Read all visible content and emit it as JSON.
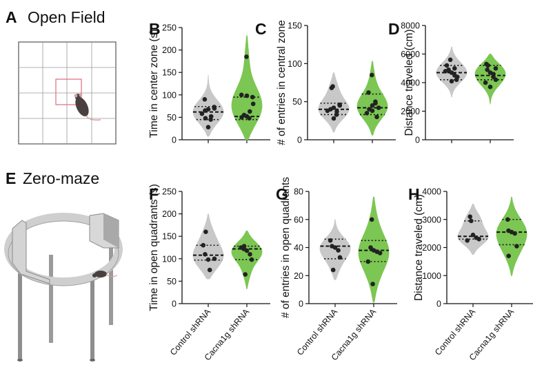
{
  "panels_text": {
    "A": {
      "letter": "A",
      "title": "Open Field"
    },
    "E": {
      "letter": "E",
      "title": "Zero-maze"
    }
  },
  "colors": {
    "control": "#c8c8c8",
    "cacna1g": "#7cc653",
    "point": "#222222",
    "arena_center": "#e06a7a"
  },
  "icons": {
    "open_field": "open-field-arena-with-mouse",
    "zero_maze": "elevated-zero-maze-with-mouse"
  },
  "chart_data": [
    {
      "id": "B",
      "type": "violin",
      "letter": "B",
      "ylabel": "Time in center zone (s)",
      "ylim": [
        0,
        250
      ],
      "yticks": [
        "0",
        "50",
        "100",
        "150",
        "200",
        "250"
      ],
      "categories": [],
      "series": [
        {
          "median": 62,
          "q1": 45,
          "q3": 74,
          "min": 8,
          "max": 145,
          "points": [
            58,
            65,
            68,
            52,
            73,
            90,
            48,
            28,
            45,
            70
          ]
        },
        {
          "median": 52,
          "q1": 45,
          "q3": 95,
          "min": 0,
          "max": 232,
          "points": [
            50,
            55,
            52,
            63,
            95,
            100,
            185,
            98,
            48,
            80
          ]
        }
      ]
    },
    {
      "id": "C",
      "type": "violin",
      "letter": "C",
      "ylabel": "# of entries in central zone",
      "ylim": [
        0,
        150
      ],
      "yticks": [
        "0",
        "50",
        "100",
        "150"
      ],
      "categories": [],
      "series": [
        {
          "median": 40,
          "q1": 33,
          "q3": 48,
          "min": 10,
          "max": 88,
          "points": [
            38,
            40,
            42,
            33,
            46,
            68,
            70,
            28,
            37,
            45
          ]
        },
        {
          "median": 42,
          "q1": 33,
          "q3": 60,
          "min": 6,
          "max": 103,
          "points": [
            35,
            40,
            45,
            50,
            30,
            62,
            85,
            38,
            48,
            42
          ]
        }
      ]
    },
    {
      "id": "D",
      "type": "violin",
      "letter": "D",
      "ylabel": "Distance traveled (cm)",
      "ylim": [
        0,
        8000
      ],
      "yticks": [
        "0",
        "2000",
        "4000",
        "6000",
        "8000"
      ],
      "categories": [],
      "series": [
        {
          "median": 4700,
          "q1": 4200,
          "q3": 5200,
          "min": 3000,
          "max": 6500,
          "points": [
            5200,
            4900,
            4700,
            4500,
            4200,
            4800,
            5600,
            4100,
            5000,
            4400
          ]
        },
        {
          "median": 4500,
          "q1": 4200,
          "q3": 5200,
          "min": 2500,
          "max": 6000,
          "points": [
            5300,
            5200,
            4700,
            4600,
            4200,
            4000,
            4900,
            3700,
            4400,
            5000
          ]
        }
      ]
    },
    {
      "id": "F",
      "type": "violin",
      "letter": "F",
      "ylabel": "Time in open quadrants (s)",
      "ylim": [
        0,
        250
      ],
      "yticks": [
        "0",
        "50",
        "100",
        "150",
        "200",
        "250"
      ],
      "categories": [
        "Control shRNA",
        "Cacna1g shRNA"
      ],
      "series": [
        {
          "median": 108,
          "q1": 97,
          "q3": 130,
          "min": 55,
          "max": 200,
          "points": [
            160,
            110,
            98,
            75,
            100,
            130
          ]
        },
        {
          "median": 122,
          "q1": 98,
          "q3": 128,
          "min": 33,
          "max": 162,
          "points": [
            125,
            122,
            118,
            110,
            98,
            65,
            128
          ]
        }
      ]
    },
    {
      "id": "G",
      "type": "violin",
      "letter": "G",
      "ylabel": "# of entries in open quadrants",
      "ylim": [
        0,
        80
      ],
      "yticks": [
        "0",
        "20",
        "40",
        "60",
        "80"
      ],
      "categories": [
        "Control shRNA",
        "Cacna1g shRNA"
      ],
      "series": [
        {
          "median": 41,
          "q1": 32,
          "q3": 46,
          "min": 17,
          "max": 60,
          "points": [
            45,
            41,
            40,
            38,
            33,
            24
          ]
        },
        {
          "median": 38,
          "q1": 30,
          "q3": 45,
          "min": 1,
          "max": 76,
          "points": [
            60,
            40,
            38,
            37,
            36,
            30,
            14
          ]
        }
      ]
    },
    {
      "id": "H",
      "type": "violin",
      "letter": "H",
      "ylabel": "Distance traveled (cm)",
      "ylim": [
        0,
        4000
      ],
      "yticks": [
        "0",
        "1000",
        "2000",
        "3000",
        "4000"
      ],
      "categories": [
        "Control shRNA",
        "Cacna1g shRNA"
      ],
      "series": [
        {
          "median": 2400,
          "q1": 2300,
          "q3": 2950,
          "min": 1750,
          "max": 3550,
          "points": [
            3100,
            2950,
            2450,
            2350,
            2300,
            2250
          ]
        },
        {
          "median": 2550,
          "q1": 2100,
          "q3": 3000,
          "min": 1000,
          "max": 3800,
          "points": [
            3000,
            2600,
            2550,
            2500,
            2050,
            1700
          ]
        }
      ]
    }
  ]
}
